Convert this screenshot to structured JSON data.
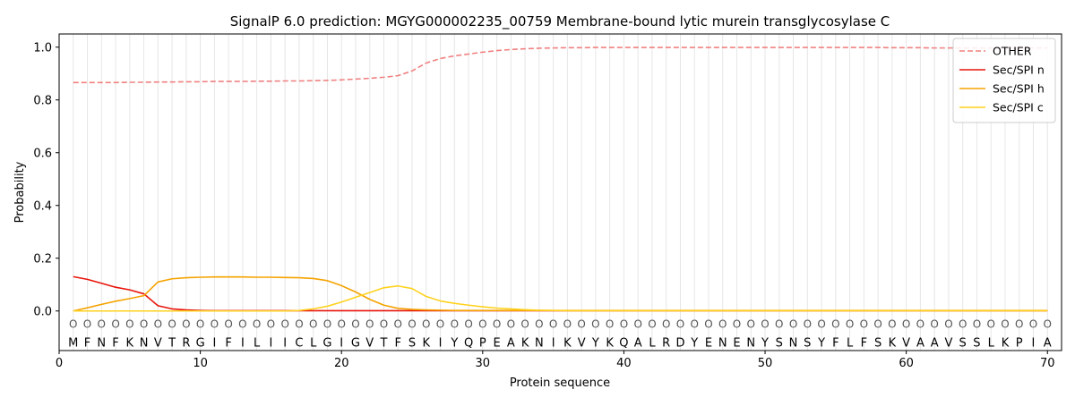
{
  "chart_data": {
    "type": "line",
    "title": "SignalP 6.0 prediction: MGYG000002235_00759 Membrane-bound lytic murein transglycosylase C",
    "xlabel": "Protein sequence",
    "ylabel": "Probability",
    "xlim": [
      0,
      71
    ],
    "ylim": [
      -0.15,
      1.05
    ],
    "x_ticks": [
      0,
      10,
      20,
      30,
      40,
      50,
      60,
      70
    ],
    "y_ticks": [
      0.0,
      0.2,
      0.4,
      0.6,
      0.8,
      1.0
    ],
    "x_tick_labels": [
      "0",
      "10",
      "20",
      "30",
      "40",
      "50",
      "60",
      "70"
    ],
    "y_tick_labels": [
      "0.0",
      "0.2",
      "0.4",
      "0.6",
      "0.8",
      "1.0"
    ],
    "sequence": [
      "M",
      "F",
      "N",
      "F",
      "K",
      "N",
      "V",
      "T",
      "R",
      "G",
      "I",
      "F",
      "I",
      "L",
      "I",
      "I",
      "C",
      "L",
      "G",
      "I",
      "G",
      "V",
      "T",
      "F",
      "S",
      "K",
      "I",
      "Y",
      "Q",
      "P",
      "E",
      "A",
      "K",
      "N",
      "I",
      "K",
      "V",
      "Y",
      "K",
      "Q",
      "A",
      "L",
      "R",
      "D",
      "Y",
      "E",
      "N",
      "E",
      "N",
      "Y",
      "S",
      "N",
      "S",
      "Y",
      "F",
      "L",
      "F",
      "S",
      "K",
      "V",
      "A",
      "A",
      "V",
      "S",
      "S",
      "L",
      "K",
      "P",
      "I",
      "A"
    ],
    "position_marker": "O",
    "legend_position": "upper right",
    "grid": "vertical lines at each residue",
    "series": [
      {
        "name": "OTHER",
        "color": "#f08080",
        "dashed": true,
        "values": [
          0.866,
          0.866,
          0.866,
          0.866,
          0.867,
          0.867,
          0.868,
          0.868,
          0.869,
          0.869,
          0.87,
          0.87,
          0.87,
          0.871,
          0.871,
          0.872,
          0.872,
          0.873,
          0.874,
          0.876,
          0.879,
          0.882,
          0.886,
          0.892,
          0.91,
          0.94,
          0.957,
          0.967,
          0.974,
          0.981,
          0.987,
          0.991,
          0.994,
          0.996,
          0.997,
          0.998,
          0.998,
          0.999,
          0.999,
          0.999,
          0.999,
          0.999,
          0.999,
          0.999,
          0.999,
          0.999,
          0.999,
          0.999,
          0.999,
          0.999,
          0.999,
          0.999,
          0.999,
          0.999,
          0.999,
          0.999,
          0.999,
          0.999,
          0.998,
          0.998,
          0.998,
          0.997,
          0.997,
          0.997,
          0.997,
          0.997,
          0.997,
          0.997,
          0.997,
          0.997
        ]
      },
      {
        "name": "Sec/SPI n",
        "color": "#e8140a",
        "dashed": false,
        "values": [
          0.13,
          0.12,
          0.105,
          0.09,
          0.08,
          0.065,
          0.02,
          0.008,
          0.004,
          0.002,
          0.001,
          0.001,
          0.001,
          0.001,
          0.001,
          0.001,
          0.001,
          0.001,
          0.001,
          0.001,
          0.001,
          0.001,
          0.001,
          0.001,
          0.001,
          0.001,
          0.001,
          0.001,
          0.001,
          0.001,
          0.001,
          0.001,
          0.001,
          0.001,
          0.001,
          0.001,
          0.001,
          0.001,
          0.001,
          0.001,
          0.001,
          0.001,
          0.001,
          0.001,
          0.001,
          0.001,
          0.001,
          0.001,
          0.001,
          0.001,
          0.001,
          0.001,
          0.001,
          0.001,
          0.001,
          0.001,
          0.001,
          0.001,
          0.001,
          0.001,
          0.001,
          0.001,
          0.001,
          0.001,
          0.001,
          0.001,
          0.001,
          0.001,
          0.001,
          0.001
        ]
      },
      {
        "name": "Sec/SPI h",
        "color": "#f5a300",
        "dashed": false,
        "values": [
          0.0,
          0.012,
          0.025,
          0.037,
          0.047,
          0.058,
          0.11,
          0.122,
          0.126,
          0.128,
          0.129,
          0.129,
          0.129,
          0.128,
          0.128,
          0.127,
          0.126,
          0.123,
          0.115,
          0.096,
          0.072,
          0.044,
          0.022,
          0.01,
          0.006,
          0.004,
          0.003,
          0.002,
          0.002,
          0.002,
          0.002,
          0.002,
          0.002,
          0.002,
          0.002,
          0.002,
          0.002,
          0.002,
          0.002,
          0.002,
          0.002,
          0.002,
          0.002,
          0.002,
          0.002,
          0.002,
          0.002,
          0.002,
          0.002,
          0.002,
          0.002,
          0.002,
          0.002,
          0.002,
          0.002,
          0.002,
          0.002,
          0.002,
          0.002,
          0.002,
          0.002,
          0.002,
          0.002,
          0.002,
          0.002,
          0.002,
          0.002,
          0.002,
          0.002,
          0.002
        ]
      },
      {
        "name": "Sec/SPI c",
        "color": "#ffd21f",
        "dashed": false,
        "values": [
          0.0,
          0.0,
          0.0,
          0.0,
          0.0,
          0.0,
          0.0,
          0.0,
          0.0,
          0.0,
          0.0,
          0.0,
          0.0,
          0.0,
          0.0,
          0.0,
          0.002,
          0.008,
          0.018,
          0.034,
          0.052,
          0.07,
          0.088,
          0.095,
          0.085,
          0.055,
          0.038,
          0.029,
          0.022,
          0.016,
          0.011,
          0.008,
          0.005,
          0.003,
          0.002,
          0.001,
          0.001,
          0.001,
          0.001,
          0.001,
          0.001,
          0.001,
          0.001,
          0.001,
          0.001,
          0.001,
          0.001,
          0.001,
          0.001,
          0.001,
          0.001,
          0.001,
          0.001,
          0.001,
          0.001,
          0.001,
          0.001,
          0.001,
          0.001,
          0.001,
          0.001,
          0.001,
          0.001,
          0.001,
          0.001,
          0.001,
          0.001,
          0.001,
          0.001,
          0.001
        ]
      }
    ]
  }
}
